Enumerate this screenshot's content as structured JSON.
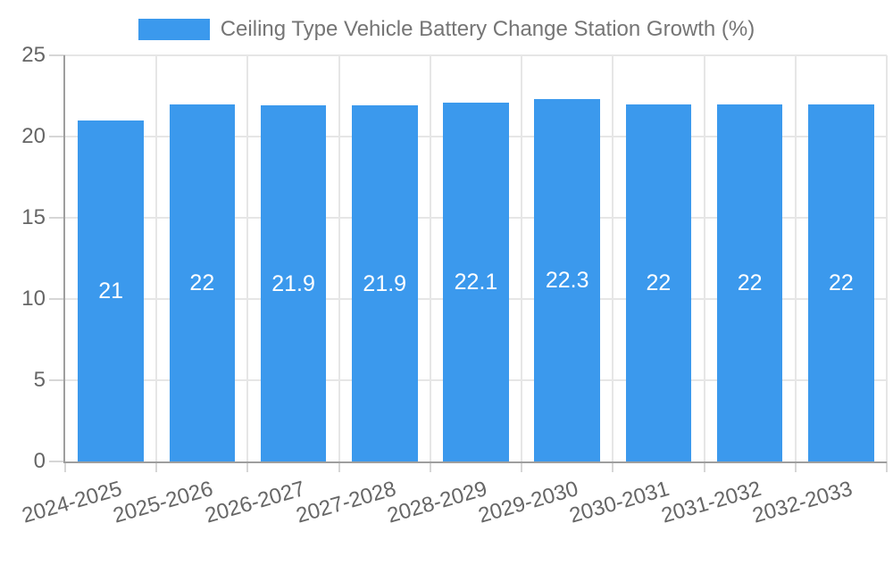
{
  "chart_data": {
    "type": "bar",
    "title": "Ceiling Type Vehicle Battery Change Station Growth (%)",
    "categories": [
      "2024-2025",
      "2025-2026",
      "2026-2027",
      "2027-2028",
      "2028-2029",
      "2029-2030",
      "2030-2031",
      "2031-2032",
      "2032-2033"
    ],
    "values": [
      21,
      22,
      21.9,
      21.9,
      22.1,
      22.3,
      22,
      22,
      22
    ],
    "xlabel": "",
    "ylabel": "",
    "ylim": [
      0,
      25
    ],
    "yticks": [
      0,
      5,
      10,
      15,
      20,
      25
    ],
    "grid": true,
    "legend_position": "top-center",
    "bar_color": "#3B99ED",
    "value_label_color": "#FFFFFF",
    "tick_label_color": "#666666",
    "legend_text_color": "#757575",
    "grid_color": "#E6E6E6",
    "axis_line_color": "#9E9E9E",
    "tick_mark_color": "#D6D6D6",
    "background_color": "#FFFFFF"
  }
}
